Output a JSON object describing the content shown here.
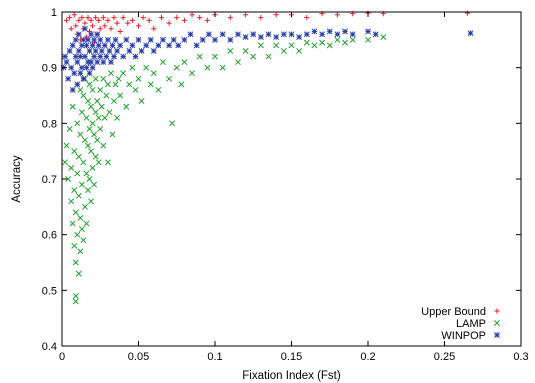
{
  "chart_data": {
    "type": "scatter",
    "xlabel": "Fixation Index (Fst)",
    "ylabel": "Accuracy",
    "xlim": [
      0,
      0.3
    ],
    "ylim": [
      0.4,
      1.0
    ],
    "x_ticks": [
      "0",
      "0.05",
      "0.1",
      "0.15",
      "0.2",
      "0.25",
      "0.3"
    ],
    "y_ticks": [
      "0.4",
      "0.5",
      "0.6",
      "0.7",
      "0.8",
      "0.9",
      "1"
    ],
    "grid": false,
    "legend_position": "bottom-right",
    "series": [
      {
        "name": "Upper Bound",
        "marker": "plus",
        "color": "#e8202a",
        "points": [
          [
            0.003,
            0.985
          ],
          [
            0.005,
            0.99
          ],
          [
            0.006,
            0.97
          ],
          [
            0.008,
            0.995
          ],
          [
            0.009,
            0.975
          ],
          [
            0.01,
            0.96
          ],
          [
            0.011,
            0.985
          ],
          [
            0.012,
            0.95
          ],
          [
            0.013,
            0.99
          ],
          [
            0.014,
            0.97
          ],
          [
            0.015,
            0.98
          ],
          [
            0.016,
            0.955
          ],
          [
            0.017,
            0.99
          ],
          [
            0.018,
            0.965
          ],
          [
            0.019,
            0.985
          ],
          [
            0.02,
            0.975
          ],
          [
            0.021,
            0.945
          ],
          [
            0.022,
            0.99
          ],
          [
            0.023,
            0.96
          ],
          [
            0.024,
            0.985
          ],
          [
            0.025,
            0.97
          ],
          [
            0.027,
            0.99
          ],
          [
            0.028,
            0.975
          ],
          [
            0.03,
            0.985
          ],
          [
            0.032,
            0.97
          ],
          [
            0.034,
            0.99
          ],
          [
            0.036,
            0.98
          ],
          [
            0.038,
            0.965
          ],
          [
            0.04,
            0.99
          ],
          [
            0.043,
            0.98
          ],
          [
            0.046,
            0.985
          ],
          [
            0.05,
            0.975
          ],
          [
            0.053,
            0.99
          ],
          [
            0.057,
            0.985
          ],
          [
            0.06,
            0.97
          ],
          [
            0.065,
            0.99
          ],
          [
            0.07,
            0.98
          ],
          [
            0.075,
            0.99
          ],
          [
            0.08,
            0.985
          ],
          [
            0.085,
            0.995
          ],
          [
            0.09,
            0.99
          ],
          [
            0.095,
            0.985
          ],
          [
            0.1,
            0.995
          ],
          [
            0.11,
            0.99
          ],
          [
            0.12,
            0.995
          ],
          [
            0.13,
            0.99
          ],
          [
            0.14,
            0.995
          ],
          [
            0.15,
            0.995
          ],
          [
            0.16,
            0.99
          ],
          [
            0.17,
            0.997
          ],
          [
            0.18,
            0.995
          ],
          [
            0.19,
            0.997
          ],
          [
            0.2,
            0.998
          ],
          [
            0.21,
            0.997
          ],
          [
            0.265,
            0.998
          ]
        ]
      },
      {
        "name": "LAMP",
        "marker": "x",
        "color": "#1fa02c",
        "points": [
          [
            0.002,
            0.73
          ],
          [
            0.003,
            0.76
          ],
          [
            0.004,
            0.7
          ],
          [
            0.005,
            0.79
          ],
          [
            0.006,
            0.66
          ],
          [
            0.006,
            0.72
          ],
          [
            0.007,
            0.62
          ],
          [
            0.007,
            0.83
          ],
          [
            0.008,
            0.58
          ],
          [
            0.008,
            0.68
          ],
          [
            0.008,
            0.75
          ],
          [
            0.009,
            0.49
          ],
          [
            0.009,
            0.48
          ],
          [
            0.009,
            0.55
          ],
          [
            0.009,
            0.64
          ],
          [
            0.01,
            0.6
          ],
          [
            0.01,
            0.71
          ],
          [
            0.01,
            0.8
          ],
          [
            0.011,
            0.53
          ],
          [
            0.011,
            0.67
          ],
          [
            0.011,
            0.74
          ],
          [
            0.012,
            0.57
          ],
          [
            0.012,
            0.63
          ],
          [
            0.012,
            0.78
          ],
          [
            0.012,
            0.86
          ],
          [
            0.013,
            0.61
          ],
          [
            0.013,
            0.69
          ],
          [
            0.013,
            0.82
          ],
          [
            0.014,
            0.59
          ],
          [
            0.014,
            0.73
          ],
          [
            0.014,
            0.85
          ],
          [
            0.015,
            0.65
          ],
          [
            0.015,
            0.77
          ],
          [
            0.015,
            0.88
          ],
          [
            0.016,
            0.62
          ],
          [
            0.016,
            0.71
          ],
          [
            0.016,
            0.81
          ],
          [
            0.017,
            0.68
          ],
          [
            0.017,
            0.76
          ],
          [
            0.017,
            0.84
          ],
          [
            0.018,
            0.7
          ],
          [
            0.018,
            0.79
          ],
          [
            0.018,
            0.87
          ],
          [
            0.019,
            0.66
          ],
          [
            0.019,
            0.75
          ],
          [
            0.019,
            0.83
          ],
          [
            0.02,
            0.72
          ],
          [
            0.02,
            0.8
          ],
          [
            0.02,
            0.86
          ],
          [
            0.021,
            0.69
          ],
          [
            0.021,
            0.78
          ],
          [
            0.022,
            0.74
          ],
          [
            0.022,
            0.82
          ],
          [
            0.022,
            0.88
          ],
          [
            0.023,
            0.77
          ],
          [
            0.023,
            0.84
          ],
          [
            0.024,
            0.73
          ],
          [
            0.024,
            0.81
          ],
          [
            0.025,
            0.79
          ],
          [
            0.025,
            0.86
          ],
          [
            0.026,
            0.83
          ],
          [
            0.027,
            0.76
          ],
          [
            0.027,
            0.88
          ],
          [
            0.028,
            0.81
          ],
          [
            0.029,
            0.85
          ],
          [
            0.03,
            0.73
          ],
          [
            0.03,
            0.87
          ],
          [
            0.031,
            0.82
          ],
          [
            0.032,
            0.89
          ],
          [
            0.033,
            0.78
          ],
          [
            0.034,
            0.84
          ],
          [
            0.035,
            0.87
          ],
          [
            0.036,
            0.81
          ],
          [
            0.037,
            0.88
          ],
          [
            0.038,
            0.85
          ],
          [
            0.04,
            0.89
          ],
          [
            0.042,
            0.83
          ],
          [
            0.044,
            0.87
          ],
          [
            0.046,
            0.9
          ],
          [
            0.048,
            0.86
          ],
          [
            0.05,
            0.88
          ],
          [
            0.052,
            0.84
          ],
          [
            0.055,
            0.9
          ],
          [
            0.058,
            0.87
          ],
          [
            0.06,
            0.89
          ],
          [
            0.063,
            0.86
          ],
          [
            0.066,
            0.91
          ],
          [
            0.07,
            0.88
          ],
          [
            0.072,
            0.8
          ],
          [
            0.075,
            0.9
          ],
          [
            0.078,
            0.87
          ],
          [
            0.08,
            0.91
          ],
          [
            0.085,
            0.89
          ],
          [
            0.09,
            0.92
          ],
          [
            0.095,
            0.9
          ],
          [
            0.1,
            0.92
          ],
          [
            0.105,
            0.9
          ],
          [
            0.11,
            0.93
          ],
          [
            0.115,
            0.91
          ],
          [
            0.12,
            0.93
          ],
          [
            0.125,
            0.92
          ],
          [
            0.13,
            0.94
          ],
          [
            0.135,
            0.92
          ],
          [
            0.14,
            0.94
          ],
          [
            0.145,
            0.93
          ],
          [
            0.15,
            0.94
          ],
          [
            0.155,
            0.93
          ],
          [
            0.16,
            0.945
          ],
          [
            0.165,
            0.94
          ],
          [
            0.17,
            0.945
          ],
          [
            0.175,
            0.94
          ],
          [
            0.18,
            0.95
          ],
          [
            0.185,
            0.945
          ],
          [
            0.19,
            0.95
          ],
          [
            0.2,
            0.95
          ],
          [
            0.21,
            0.955
          ]
        ]
      },
      {
        "name": "WINPOP",
        "marker": "star",
        "color": "#2b3fa8",
        "points": [
          [
            0.001,
            0.9
          ],
          [
            0.002,
            0.92
          ],
          [
            0.003,
            0.91
          ],
          [
            0.004,
            0.88
          ],
          [
            0.005,
            0.93
          ],
          [
            0.006,
            0.9
          ],
          [
            0.007,
            0.86
          ],
          [
            0.007,
            0.94
          ],
          [
            0.008,
            0.89
          ],
          [
            0.009,
            0.92
          ],
          [
            0.009,
            0.95
          ],
          [
            0.01,
            0.87
          ],
          [
            0.01,
            0.91
          ],
          [
            0.011,
            0.93
          ],
          [
            0.011,
            0.96
          ],
          [
            0.012,
            0.89
          ],
          [
            0.012,
            0.92
          ],
          [
            0.013,
            0.94
          ],
          [
            0.013,
            0.9
          ],
          [
            0.014,
            0.95
          ],
          [
            0.014,
            0.88
          ],
          [
            0.015,
            0.92
          ],
          [
            0.015,
            0.97
          ],
          [
            0.016,
            0.9
          ],
          [
            0.016,
            0.94
          ],
          [
            0.017,
            0.91
          ],
          [
            0.017,
            0.95
          ],
          [
            0.018,
            0.89
          ],
          [
            0.018,
            0.93
          ],
          [
            0.019,
            0.96
          ],
          [
            0.019,
            0.91
          ],
          [
            0.02,
            0.94
          ],
          [
            0.02,
            0.9
          ],
          [
            0.021,
            0.92
          ],
          [
            0.021,
            0.95
          ],
          [
            0.022,
            0.93
          ],
          [
            0.023,
            0.91
          ],
          [
            0.023,
            0.96
          ],
          [
            0.024,
            0.94
          ],
          [
            0.025,
            0.92
          ],
          [
            0.025,
            0.95
          ],
          [
            0.026,
            0.93
          ],
          [
            0.027,
            0.91
          ],
          [
            0.028,
            0.94
          ],
          [
            0.029,
            0.92
          ],
          [
            0.03,
            0.95
          ],
          [
            0.031,
            0.93
          ],
          [
            0.032,
            0.91
          ],
          [
            0.033,
            0.94
          ],
          [
            0.034,
            0.92
          ],
          [
            0.035,
            0.95
          ],
          [
            0.036,
            0.93
          ],
          [
            0.038,
            0.94
          ],
          [
            0.04,
            0.92
          ],
          [
            0.042,
            0.95
          ],
          [
            0.044,
            0.93
          ],
          [
            0.046,
            0.94
          ],
          [
            0.048,
            0.92
          ],
          [
            0.05,
            0.95
          ],
          [
            0.052,
            0.93
          ],
          [
            0.055,
            0.94
          ],
          [
            0.058,
            0.95
          ],
          [
            0.06,
            0.93
          ],
          [
            0.063,
            0.94
          ],
          [
            0.066,
            0.95
          ],
          [
            0.07,
            0.94
          ],
          [
            0.073,
            0.95
          ],
          [
            0.076,
            0.94
          ],
          [
            0.08,
            0.95
          ],
          [
            0.084,
            0.96
          ],
          [
            0.088,
            0.94
          ],
          [
            0.092,
            0.95
          ],
          [
            0.096,
            0.96
          ],
          [
            0.1,
            0.95
          ],
          [
            0.105,
            0.96
          ],
          [
            0.11,
            0.95
          ],
          [
            0.115,
            0.96
          ],
          [
            0.12,
            0.955
          ],
          [
            0.125,
            0.96
          ],
          [
            0.13,
            0.955
          ],
          [
            0.135,
            0.96
          ],
          [
            0.14,
            0.955
          ],
          [
            0.145,
            0.96
          ],
          [
            0.15,
            0.96
          ],
          [
            0.155,
            0.955
          ],
          [
            0.16,
            0.96
          ],
          [
            0.165,
            0.965
          ],
          [
            0.17,
            0.96
          ],
          [
            0.175,
            0.965
          ],
          [
            0.18,
            0.96
          ],
          [
            0.185,
            0.965
          ],
          [
            0.19,
            0.96
          ],
          [
            0.2,
            0.965
          ],
          [
            0.205,
            0.96
          ],
          [
            0.267,
            0.962
          ]
        ]
      }
    ]
  }
}
